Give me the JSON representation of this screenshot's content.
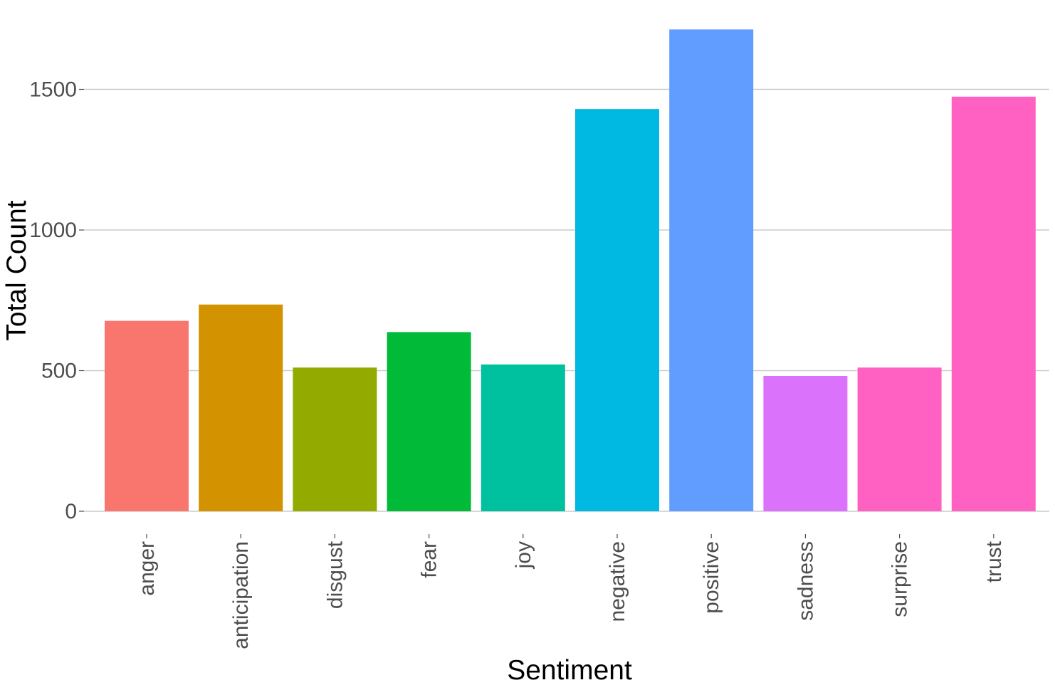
{
  "chart_data": {
    "type": "bar",
    "categories": [
      "anger",
      "anticipation",
      "disgust",
      "fear",
      "joy",
      "negative",
      "positive",
      "sadness",
      "surprise",
      "trust"
    ],
    "values": [
      677,
      735,
      511,
      637,
      522,
      1430,
      1713,
      481,
      511,
      1474
    ],
    "colors": [
      "#F8766D",
      "#D39200",
      "#93AA00",
      "#00BA38",
      "#00C19F",
      "#00B9E3",
      "#619CFF",
      "#DB72FB",
      "#FF61C3",
      "#FF61C3"
    ],
    "xlabel": "Sentiment",
    "ylabel": "Total Count",
    "yticks": [
      0,
      500,
      1000,
      1500
    ],
    "ylim": [
      0,
      1713
    ],
    "grid": "horizontal major",
    "legend": "none"
  }
}
